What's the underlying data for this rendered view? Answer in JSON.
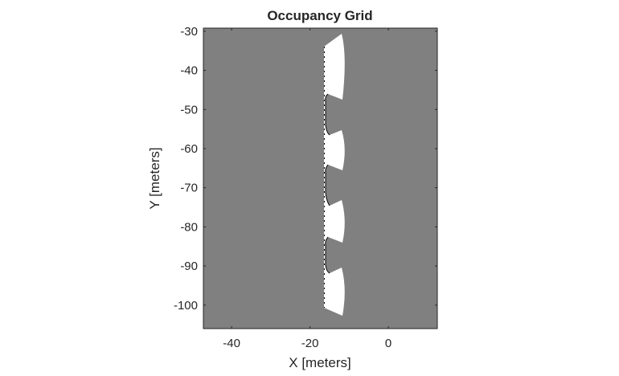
{
  "chart_data": {
    "type": "heatmap",
    "title": "Occupancy Grid",
    "xlabel": "X [meters]",
    "ylabel": "Y [meters]",
    "xlim": [
      -47.2,
      12.5
    ],
    "ylim": [
      -106,
      -29.2
    ],
    "xticks": [
      -40,
      -20,
      0
    ],
    "yticks": [
      -30,
      -40,
      -50,
      -60,
      -70,
      -80,
      -90,
      -100
    ],
    "grid": false,
    "legend": "none",
    "colors": {
      "unknown": "#808080",
      "free": "#ffffff",
      "occupied": "#000000"
    },
    "free_region": "vertical strip near x = -17 to -10 m, spanning y = -31 to -103 m, with four wider lobes centered near y = -39, -59, -78, -97"
  }
}
